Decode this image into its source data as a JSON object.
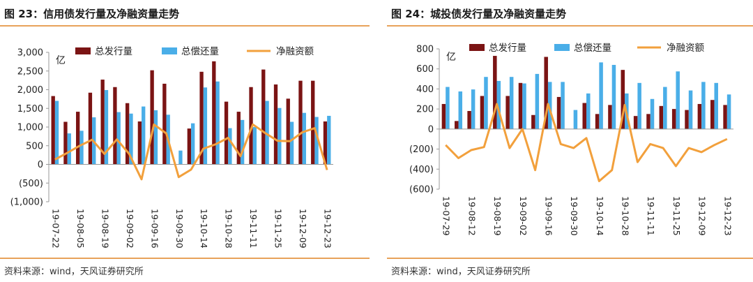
{
  "charts": [
    {
      "title": "图 23：信用债发行量及净融资量走势",
      "source": "资料来源：wind，天风证券研究所",
      "chart_data": {
        "type": "bar",
        "unit_label": "亿",
        "ylim": [
          -1000,
          3000
        ],
        "yticks": [
          -1000,
          -500,
          0,
          500,
          1000,
          1500,
          2000,
          2500,
          3000
        ],
        "ytick_labels": [
          "(1,000)",
          "(500)",
          "0",
          "500",
          "1,000",
          "1,500",
          "2,000",
          "2,500",
          "3,000"
        ],
        "xtick_labels": [
          "19-07-22",
          "19-08-05",
          "19-08-19",
          "19-09-02",
          "19-09-16",
          "19-09-30",
          "19-10-14",
          "19-10-28",
          "19-11-11",
          "19-11-25",
          "19-12-09",
          "19-12-23"
        ],
        "n_periods": 23,
        "series": [
          {
            "name": "总发行量",
            "type": "bar",
            "color": "#7b1414",
            "values": [
              1830,
              1140,
              1410,
              1920,
              2270,
              2070,
              1640,
              1150,
              2520,
              2160,
              null,
              960,
              2480,
              2760,
              1680,
              1410,
              2070,
              2540,
              2140,
              1760,
              2240,
              2240,
              1150
            ]
          },
          {
            "name": "总偿还量",
            "type": "bar",
            "color": "#4aaee8",
            "values": [
              1700,
              830,
              900,
              1260,
              1990,
              1400,
              1360,
              1550,
              1450,
              1330,
              370,
              1100,
              2060,
              2220,
              970,
              1190,
              1000,
              1700,
              1510,
              1140,
              1380,
              1270,
              1300
            ]
          },
          {
            "name": "净融资额",
            "type": "line",
            "color": "#f2a03c",
            "values": [
              130,
              310,
              500,
              660,
              280,
              670,
              280,
              -400,
              1070,
              830,
              -340,
              -140,
              420,
              540,
              710,
              220,
              1070,
              840,
              630,
              620,
              860,
              970,
              -150
            ]
          }
        ]
      }
    },
    {
      "title": "图 24：城投债发行量及净融资量走势",
      "source": "资料来源：wind，天风证券研究所",
      "chart_data": {
        "type": "bar",
        "unit_label": "亿",
        "ylim": [
          -600,
          800
        ],
        "yticks": [
          -600,
          -400,
          -200,
          0,
          200,
          400,
          600,
          800
        ],
        "ytick_labels": [
          "(600)",
          "(400)",
          "(200)",
          "0",
          "200",
          "400",
          "600",
          "800"
        ],
        "xtick_labels": [
          "19-07-29",
          "19-08-12",
          "19-08-19",
          "19-09-02",
          "19-09-16",
          "19-09-30",
          "19-10-14",
          "19-10-28",
          "19-11-11",
          "19-11-25",
          "19-12-09",
          "19-12-23"
        ],
        "n_periods": 23,
        "series": [
          {
            "name": "总发行量",
            "type": "bar",
            "color": "#7b1414",
            "values": [
              250,
              80,
              180,
              330,
              730,
              330,
              460,
              140,
              720,
              320,
              null,
              260,
              150,
              240,
              590,
              130,
              150,
              230,
              200,
              190,
              250,
              290,
              240
            ]
          },
          {
            "name": "总偿还量",
            "type": "bar",
            "color": "#4aaee8",
            "values": [
              420,
              375,
              395,
              520,
              480,
              520,
              455,
              550,
              470,
              470,
              190,
              355,
              665,
              640,
              355,
              460,
              300,
              420,
              575,
              385,
              470,
              460,
              345
            ]
          },
          {
            "name": "净融资额",
            "type": "line",
            "color": "#f2a03c",
            "values": [
              -160,
              -290,
              -210,
              -180,
              250,
              -190,
              0,
              -410,
              250,
              -150,
              -190,
              -90,
              -520,
              -410,
              240,
              -330,
              -150,
              -190,
              -370,
              -190,
              -230,
              -160,
              -100
            ]
          }
        ]
      }
    }
  ]
}
